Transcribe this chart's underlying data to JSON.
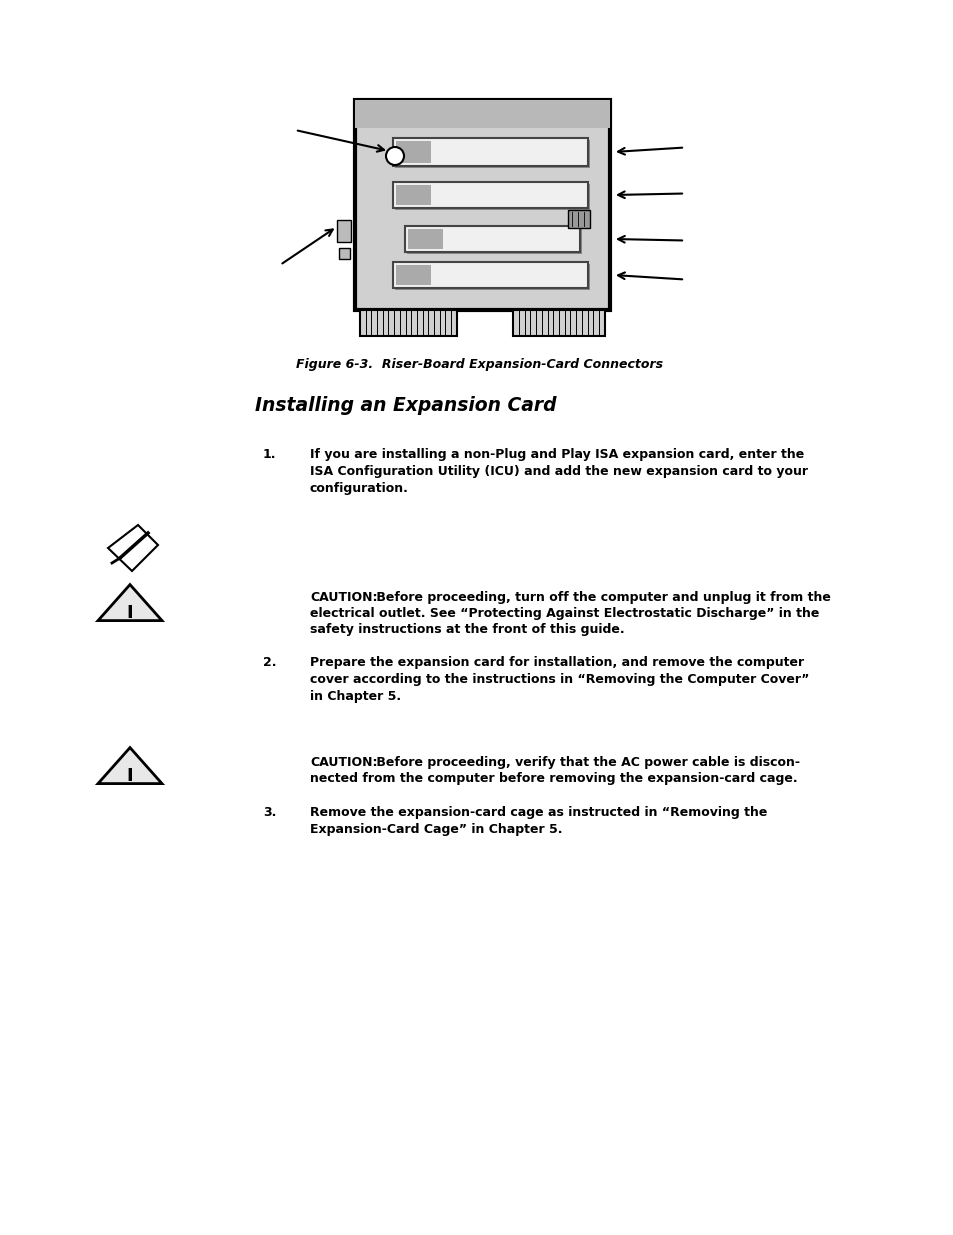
{
  "bg_color": "#ffffff",
  "fig_caption": "Figure 6-3.  Riser-Board Expansion-Card Connectors",
  "section_title": "Installing an Expansion Card",
  "item1_num": "1.",
  "item1_text": "If you are installing a non-Plug and Play ISA expansion card, enter the\nISA Configuration Utility (ICU) and add the new expansion card to your\nconfiguration.",
  "item2_num": "2.",
  "item2_text": "Prepare the expansion card for installation, and remove the computer\ncover according to the instructions in “Removing the Computer Cover”\nin Chapter 5.",
  "item3_num": "3.",
  "item3_text": "Remove the expansion-card cage as instructed in “Removing the\nExpansion-Card Cage” in Chapter 5.",
  "caution1_bold": "CAUTION:",
  "caution1_rest": " Before proceeding, turn off the computer and unplug it from the\nelectrical outlet. See “Protecting Against Electrostatic Discharge” in the\nsafety instructions at the front of this guide.",
  "caution2_bold": "CAUTION:",
  "caution2_rest": " Before proceeding, verify that the AC power cable is discon-\nnected from the computer before removing the expansion-card cage.",
  "text_fontsize": 9.0,
  "title_fontsize": 13.5,
  "caption_fontsize": 9.0,
  "board_color": "#cccccc",
  "slot_color": "#e8e8e8",
  "slot_border": "#333333"
}
